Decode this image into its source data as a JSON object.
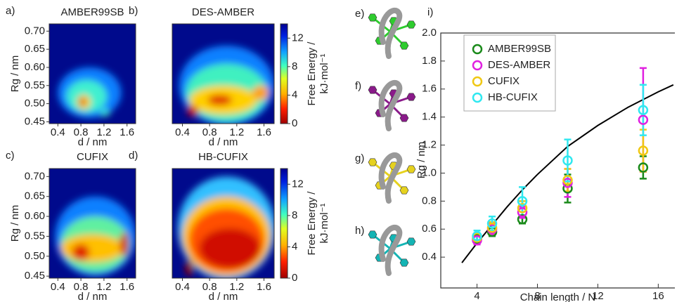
{
  "chart_data": [
    {
      "type": "heatmap",
      "panel": "a)",
      "title": "AMBER99SB",
      "xlabel": "d / nm",
      "ylabel": "Rg / nm",
      "xlim": [
        0.25,
        1.75
      ],
      "xticks": [
        0.4,
        0.8,
        1.2,
        1.6
      ],
      "ylim": [
        0.445,
        0.72
      ],
      "yticks": [
        0.45,
        {
          "value": 0.5,
          "label": "0.50"
        },
        0.55,
        {
          "value": 0.6,
          "label": "0.60"
        },
        0.65,
        {
          "value": 0.7,
          "label": "0.70"
        }
      ]
    },
    {
      "type": "heatmap",
      "panel": "b)",
      "title": "DES-AMBER",
      "xlabel": "d / nm",
      "xlim": [
        0.25,
        1.75
      ],
      "xticks": [
        0.4,
        0.8,
        1.2,
        1.6
      ],
      "ylim": [
        0.445,
        0.72
      ],
      "colorbar": {
        "label": [
          "Free Energy /",
          "kJ·mol⁻¹"
        ],
        "lim": [
          0,
          14
        ],
        "ticks": [
          0,
          4,
          8,
          12
        ]
      }
    },
    {
      "type": "heatmap",
      "panel": "c)",
      "title": "CUFIX",
      "xlabel": "d / nm",
      "ylabel": "Rg / nm",
      "xlim": [
        0.25,
        1.75
      ],
      "xticks": [
        0.4,
        0.8,
        1.2,
        1.6
      ],
      "ylim": [
        0.445,
        0.72
      ],
      "yticks": [
        0.45,
        {
          "value": 0.5,
          "label": "0.50"
        },
        0.55,
        {
          "value": 0.6,
          "label": "0.60"
        },
        0.65,
        {
          "value": 0.7,
          "label": "0.70"
        }
      ]
    },
    {
      "type": "heatmap",
      "panel": "d)",
      "title": "HB-CUFIX",
      "xlabel": "d / nm",
      "xlim": [
        0.25,
        1.75
      ],
      "xticks": [
        0.4,
        0.8,
        1.2,
        1.6
      ],
      "ylim": [
        0.445,
        0.72
      ],
      "colorbar": {
        "label": [
          "Free Energy /",
          "kJ·mol⁻¹"
        ],
        "lim": [
          0,
          14
        ],
        "ticks": [
          0,
          4,
          8,
          12
        ]
      }
    },
    {
      "type": "scatter",
      "panel": "i)",
      "xlabel": "Chain length / N",
      "ylabel": "Rg / nm",
      "xlim": [
        1.6,
        17.1
      ],
      "xticks": [
        4,
        8,
        12,
        16
      ],
      "ylim": [
        0.18,
        2.0
      ],
      "yticks": [
        0.4,
        0.6,
        0.8,
        {
          "value": 1,
          "label": "1.0"
        },
        1.2,
        1.4,
        1.6,
        1.8,
        {
          "value": 2,
          "label": "2.0"
        }
      ],
      "x": [
        4,
        5,
        7,
        10,
        15
      ],
      "series": [
        {
          "name": "AMBER99SB",
          "color": "#1a8a1a",
          "values": [
            0.53,
            0.58,
            0.67,
            0.89,
            1.04
          ],
          "errors": [
            0.03,
            0.03,
            0.03,
            0.1,
            0.08
          ]
        },
        {
          "name": "DES-AMBER",
          "color": "#e020e0",
          "values": [
            0.52,
            0.6,
            0.72,
            0.93,
            1.38
          ],
          "errors": [
            0.03,
            0.04,
            0.04,
            0.1,
            0.37
          ]
        },
        {
          "name": "CUFIX",
          "color": "#f0c814",
          "values": [
            0.54,
            0.61,
            0.75,
            0.95,
            1.16
          ],
          "errors": [
            0.03,
            0.04,
            0.05,
            0.08,
            0.15
          ]
        },
        {
          "name": "HB-CUFIX",
          "color": "#30e8f0",
          "values": [
            0.55,
            0.64,
            0.8,
            1.09,
            1.45
          ],
          "errors": [
            0.04,
            0.05,
            0.1,
            0.15,
            0.18
          ]
        }
      ],
      "curve": {
        "color": "#000000",
        "x": [
          3,
          4,
          5,
          6,
          7,
          8,
          10,
          12,
          14,
          16,
          17
        ],
        "values": [
          0.36,
          0.5,
          0.63,
          0.76,
          0.88,
          0.99,
          1.19,
          1.34,
          1.47,
          1.58,
          1.63
        ]
      }
    }
  ],
  "structures": [
    {
      "label": "e)",
      "color": "#2ecc2e"
    },
    {
      "label": "f)",
      "color": "#8a1a8a"
    },
    {
      "label": "g)",
      "color": "#e6d21e"
    },
    {
      "label": "h)",
      "color": "#14b4b4"
    }
  ]
}
